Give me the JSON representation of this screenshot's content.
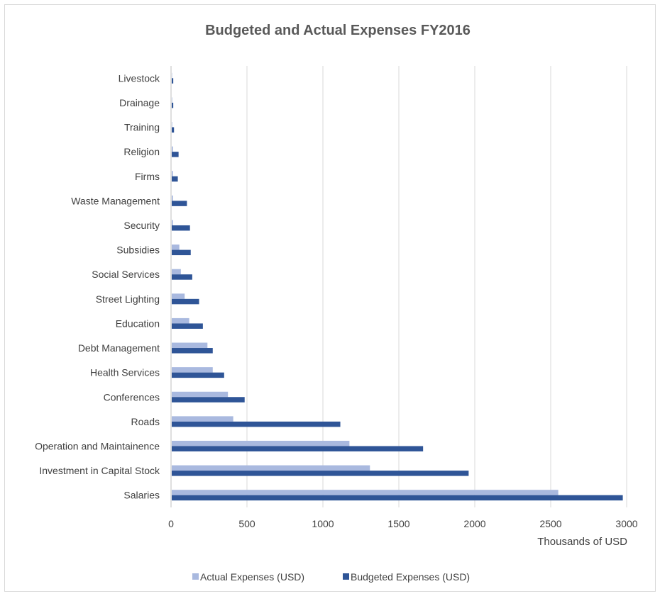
{
  "chart_data": {
    "type": "bar",
    "orientation": "horizontal",
    "title": "Budgeted and Actual Expenses FY2016",
    "xlabel": "Thousands of USD",
    "ylabel": "",
    "xlim": [
      0,
      3000
    ],
    "x_ticks": [
      0,
      500,
      1000,
      1500,
      2000,
      2500,
      3000
    ],
    "grid": true,
    "legend_position": "bottom",
    "categories": [
      "Salaries",
      "Investment in Capital Stock",
      "Operation and Maintainence",
      "Roads",
      "Conferences",
      "Health Services",
      "Debt Management",
      "Education",
      "Street Lighting",
      "Social Services",
      "Subsidies",
      "Security",
      "Waste Management",
      "Firms",
      "Religion",
      "Training",
      "Drainage",
      "Livestock"
    ],
    "series": [
      {
        "name": "Actual Expenses (USD)",
        "color": "#a9b9df",
        "values": [
          2545,
          1305,
          1170,
          405,
          370,
          270,
          235,
          115,
          85,
          60,
          50,
          8,
          8,
          8,
          8,
          3,
          3,
          2
        ]
      },
      {
        "name": "Budgeted Expenses (USD)",
        "color": "#2f5597",
        "values": [
          2970,
          1955,
          1655,
          1110,
          480,
          345,
          270,
          205,
          180,
          135,
          125,
          120,
          100,
          40,
          45,
          15,
          10,
          10
        ]
      }
    ]
  }
}
